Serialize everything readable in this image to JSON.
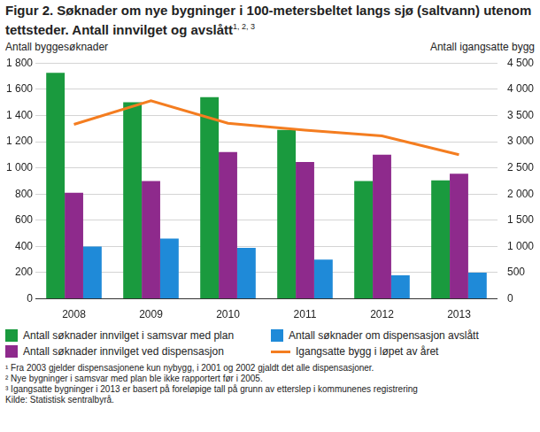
{
  "chart_data": {
    "type": "bar",
    "title": "Figur 2. Søknader om nye bygninger i 100-metersbeltet langs sjø (saltvann) utenom tettsteder. Antall innvilget og avslått",
    "title_superscript": "1, 2, 3",
    "y_label": "Antall byggesøknader",
    "y2_label": "Antall igangsatte bygg",
    "categories": [
      "2008",
      "2009",
      "2010",
      "2011",
      "2012",
      "2013"
    ],
    "series": [
      {
        "name": "Antall søknader innvilget i samsvar med plan",
        "color": "#1a9a3e",
        "values": [
          1725,
          1500,
          1540,
          1290,
          900,
          905
        ]
      },
      {
        "name": "Antall søknader innvilget ved dispensasjon",
        "color": "#8e2a8c",
        "values": [
          810,
          900,
          1120,
          1045,
          1100,
          955
        ]
      },
      {
        "name": "Antall søknader om dispensasjon avslått",
        "color": "#1f8ad8",
        "values": [
          400,
          460,
          390,
          300,
          180,
          200
        ]
      },
      {
        "name": "Igangsatte bygg i løpet av året",
        "color": "#f47d20",
        "type": "line",
        "axis": "y2",
        "values": [
          3330,
          3780,
          3350,
          3220,
          3110,
          2750
        ]
      }
    ],
    "ylim": [
      0,
      1800
    ],
    "yticks": [
      0,
      200,
      400,
      600,
      800,
      {
        "value": 1000,
        "label": "1 000"
      },
      {
        "value": 1200,
        "label": "1 200"
      },
      {
        "value": 1400,
        "label": "1 400"
      },
      {
        "value": 1600,
        "label": "1 600"
      },
      {
        "value": 1800,
        "label": "1 800"
      }
    ],
    "y2lim": [
      0,
      4500
    ],
    "y2ticks": [
      0,
      500,
      {
        "value": 1000,
        "label": "1 000"
      },
      {
        "value": 1500,
        "label": "1 500"
      },
      {
        "value": 2000,
        "label": "2 000"
      },
      {
        "value": 2500,
        "label": "2 500"
      },
      {
        "value": 3000,
        "label": "3 000"
      },
      {
        "value": 3500,
        "label": "3 500"
      },
      {
        "value": 4000,
        "label": "4 000"
      },
      {
        "value": 4500,
        "label": "4 500"
      }
    ],
    "grid": true,
    "legend": "bottom",
    "notes": [
      "¹ Fra 2003 gjelder dispensasjonene kun nybygg, i 2001 og 2002 gjaldt det alle dispensasjoner.",
      "² Nye bygninger i samsvar med plan ble ikke rapportert før i 2005.",
      "³ Igangsatte bygninger i 2013 er basert på foreløpige tall på grunn av etterslep i kommunenes registrering"
    ],
    "source": "Kilde: Statistisk sentralbyrå."
  }
}
